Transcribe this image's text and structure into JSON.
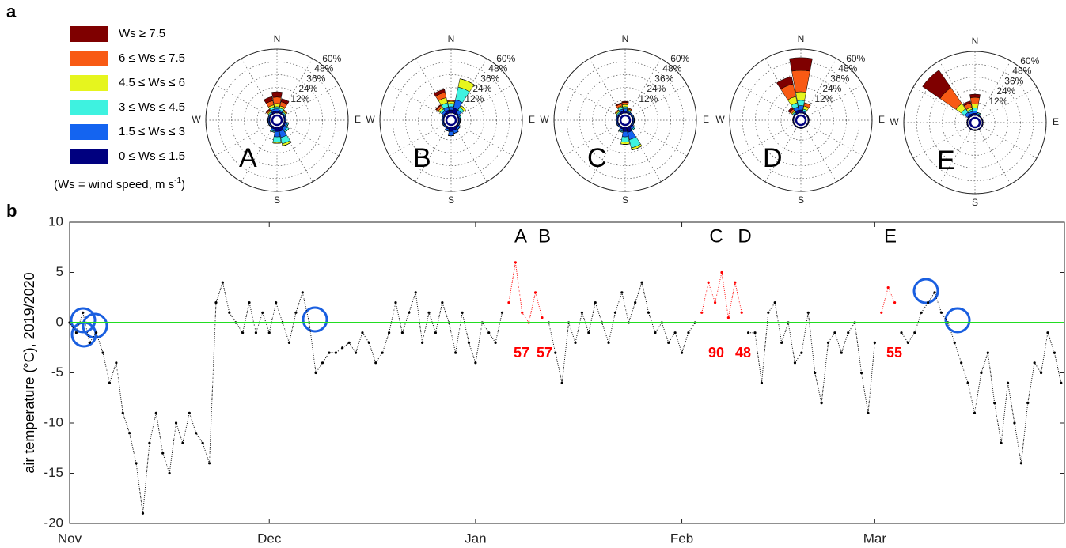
{
  "panel_labels": [
    "a",
    "b"
  ],
  "legend": {
    "entries": [
      {
        "name": "Ws ≥ 7.5",
        "color": "#7f0000"
      },
      {
        "name": "6  ≤ Ws ≤ 7.5",
        "color": "#f85a14"
      },
      {
        "name": "4.5  ≤ Ws ≤ 6",
        "color": "#e6f51e"
      },
      {
        "name": "3  ≤ Ws ≤ 4.5",
        "color": "#3ef2e0"
      },
      {
        "name": "1.5  ≤ Ws ≤ 3",
        "color": "#1464f0"
      },
      {
        "name": "0 ≤ Ws ≤ 1.5",
        "color": "#00007f"
      }
    ],
    "note": "(Ws = wind speed, m s",
    "note_sup": "-1",
    "note_end": ")"
  },
  "chart_data": [
    {
      "type": "wind-rose",
      "label": "A",
      "directions": [
        "N",
        "E",
        "S",
        "W"
      ],
      "rlim": [
        0,
        60
      ],
      "rticks": [
        {
          "value": 12,
          "label": "12%"
        },
        {
          "value": 24,
          "label": "24%"
        },
        {
          "value": 36,
          "label": "36%"
        },
        {
          "value": 48,
          "label": "48%"
        },
        {
          "value": 60,
          "label": "60%"
        }
      ],
      "theta": [
        0,
        22.5,
        45,
        67.5,
        90,
        112.5,
        135,
        157.5,
        180,
        202.5,
        225,
        247.5,
        270,
        292.5,
        315,
        337.5
      ],
      "values": [
        [
          5,
          3,
          0,
          0,
          0,
          0,
          0,
          0,
          0,
          0,
          0,
          0,
          0,
          0,
          1,
          4
        ],
        [
          6,
          4,
          1,
          0,
          0,
          0,
          0,
          0,
          0,
          0,
          0,
          0,
          0,
          0,
          1,
          4
        ],
        [
          3,
          2,
          1,
          0,
          0,
          0,
          0,
          2,
          1,
          0,
          0,
          0,
          0,
          0,
          1,
          2
        ],
        [
          2,
          2,
          1,
          0,
          0,
          1,
          2,
          6,
          5,
          1,
          0,
          0,
          0,
          0,
          1,
          2
        ],
        [
          2,
          1.5,
          1,
          1,
          1,
          2,
          3,
          6,
          5,
          2,
          1,
          1,
          1,
          1,
          1,
          2
        ],
        [
          2,
          1.5,
          1,
          1,
          1,
          1.5,
          2,
          4,
          4,
          2,
          1,
          1,
          1,
          1,
          1,
          2
        ]
      ]
    },
    {
      "type": "wind-rose",
      "label": "B",
      "directions": [
        "N",
        "E",
        "S",
        "W"
      ],
      "rlim": [
        0,
        60
      ],
      "rticks": [
        {
          "value": 12,
          "label": "12%"
        },
        {
          "value": 24,
          "label": "24%"
        },
        {
          "value": 36,
          "label": "36%"
        },
        {
          "value": 48,
          "label": "48%"
        },
        {
          "value": 60,
          "label": "60%"
        }
      ],
      "theta": [
        0,
        22.5,
        45,
        67.5,
        90,
        112.5,
        135,
        157.5,
        180,
        202.5,
        225,
        247.5,
        270,
        292.5,
        315,
        337.5
      ],
      "values": [
        [
          0,
          0,
          0,
          0,
          0,
          0,
          0,
          0,
          0,
          0,
          0,
          0,
          0,
          0,
          1,
          3
        ],
        [
          1,
          0,
          0,
          0,
          0,
          0,
          0,
          0,
          0,
          0,
          0,
          0,
          0,
          0,
          2,
          5
        ],
        [
          2,
          8,
          2,
          0,
          0,
          0,
          0,
          0,
          0,
          0,
          0,
          0,
          0,
          0,
          2,
          5
        ],
        [
          3,
          12,
          3,
          1,
          0,
          0,
          0,
          0,
          0,
          0,
          0,
          0,
          0,
          0,
          2,
          4
        ],
        [
          3,
          8,
          3,
          1,
          1,
          1,
          2,
          3,
          4,
          2,
          1,
          1,
          1,
          1,
          2,
          3
        ],
        [
          3,
          5,
          2,
          1,
          1,
          1,
          2,
          3,
          4,
          2,
          1,
          1,
          1,
          1,
          2,
          3
        ]
      ]
    },
    {
      "type": "wind-rose",
      "label": "C",
      "directions": [
        "N",
        "E",
        "S",
        "W"
      ],
      "rlim": [
        0,
        60
      ],
      "rticks": [
        {
          "value": 12,
          "label": "12%"
        },
        {
          "value": 24,
          "label": "24%"
        },
        {
          "value": 36,
          "label": "36%"
        },
        {
          "value": 48,
          "label": "48%"
        },
        {
          "value": 60,
          "label": "60%"
        }
      ],
      "theta": [
        0,
        22.5,
        45,
        67.5,
        90,
        112.5,
        135,
        157.5,
        180,
        202.5,
        225,
        247.5,
        270,
        292.5,
        315,
        337.5
      ],
      "values": [
        [
          1,
          0,
          0,
          0,
          0,
          0,
          0,
          0,
          0,
          0,
          0,
          0,
          0,
          0,
          0,
          1
        ],
        [
          2,
          1,
          0,
          0,
          0,
          0,
          0,
          0,
          0,
          0,
          0,
          0,
          0,
          0,
          1,
          2
        ],
        [
          2,
          1,
          0,
          0,
          0,
          0,
          0,
          2,
          2,
          0,
          0,
          0,
          0,
          0,
          1,
          1
        ],
        [
          2,
          1,
          0,
          0,
          0,
          0,
          1,
          8,
          5,
          1,
          0,
          0,
          0,
          0,
          1,
          2
        ],
        [
          2,
          1,
          1,
          1,
          1,
          1,
          2,
          7,
          5,
          2,
          1,
          1,
          1,
          1,
          1,
          2
        ],
        [
          2,
          1,
          1,
          1,
          1,
          1,
          2,
          5,
          4,
          2,
          1,
          1,
          1,
          1,
          1,
          2
        ]
      ]
    },
    {
      "type": "wind-rose",
      "label": "D",
      "directions": [
        "N",
        "E",
        "S",
        "W"
      ],
      "rlim": [
        0,
        60
      ],
      "rticks": [
        {
          "value": 12,
          "label": "12%"
        },
        {
          "value": 24,
          "label": "24%"
        },
        {
          "value": 36,
          "label": "36%"
        },
        {
          "value": 48,
          "label": "48%"
        },
        {
          "value": 60,
          "label": "60%"
        }
      ],
      "theta": [
        0,
        22.5,
        45,
        67.5,
        90,
        112.5,
        135,
        157.5,
        180,
        202.5,
        225,
        247.5,
        270,
        292.5,
        315,
        337.5
      ],
      "values": [
        [
          12,
          0,
          0,
          0,
          0,
          0,
          0,
          0,
          0,
          0,
          0,
          0,
          0,
          0,
          2,
          7
        ],
        [
          20,
          3,
          0,
          0,
          0,
          0,
          0,
          0,
          0,
          0,
          0,
          0,
          0,
          0,
          2,
          12
        ],
        [
          8,
          3,
          0,
          0,
          0,
          0,
          0,
          0,
          0,
          0,
          0,
          0,
          0,
          0,
          1,
          6
        ],
        [
          5,
          2,
          0,
          0,
          0,
          0,
          0,
          0,
          0,
          0,
          0,
          0,
          0,
          0,
          1,
          4
        ],
        [
          4,
          1,
          0,
          0,
          0,
          0,
          0,
          0,
          0,
          0,
          0,
          0,
          0,
          0,
          1,
          3
        ],
        [
          3,
          1,
          1,
          1,
          1,
          1,
          1,
          1,
          1,
          1,
          1,
          1,
          1,
          1,
          1,
          3
        ]
      ]
    },
    {
      "type": "wind-rose",
      "label": "E",
      "directions": [
        "N",
        "E",
        "S",
        "W"
      ],
      "rlim": [
        0,
        60
      ],
      "rticks": [
        {
          "value": 12,
          "label": "12%"
        },
        {
          "value": 24,
          "label": "24%"
        },
        {
          "value": 36,
          "label": "36%"
        },
        {
          "value": 48,
          "label": "48%"
        },
        {
          "value": 60,
          "label": "60%"
        }
      ],
      "theta": [
        0,
        22.5,
        45,
        67.5,
        90,
        112.5,
        135,
        157.5,
        180,
        202.5,
        225,
        247.5,
        270,
        292.5,
        315,
        337.5
      ],
      "values": [
        [
          3,
          0,
          0,
          0,
          0,
          0,
          0,
          0,
          0,
          0,
          0,
          0,
          0,
          0,
          20,
          2
        ],
        [
          6,
          0,
          0,
          0,
          0,
          0,
          0,
          0,
          0,
          0,
          0,
          0,
          0,
          0,
          18,
          4
        ],
        [
          4,
          0,
          0,
          0,
          0,
          0,
          0,
          0,
          0,
          0,
          0,
          0,
          0,
          0,
          6,
          2
        ],
        [
          3,
          1,
          0,
          0,
          0,
          0,
          0,
          0,
          0,
          0,
          0,
          0,
          0,
          0,
          4,
          2
        ],
        [
          2,
          1,
          0,
          0,
          0,
          0,
          0,
          0,
          0,
          0,
          0,
          0,
          0,
          0,
          3,
          2
        ],
        [
          2,
          1,
          1,
          1,
          1,
          1,
          1,
          1,
          1,
          1,
          1,
          1,
          1,
          1,
          2,
          2
        ]
      ]
    },
    {
      "type": "scatter",
      "ylabel": "air temperature (°C), 2019/2020",
      "xlim": [
        0,
        149.5
      ],
      "ylim": [
        -20,
        10
      ],
      "xticks": [
        {
          "value": 0,
          "label": "Nov"
        },
        {
          "value": 30,
          "label": "Dec"
        },
        {
          "value": 61,
          "label": "Jan"
        },
        {
          "value": 92,
          "label": "Feb"
        },
        {
          "value": 121,
          "label": "Mar"
        }
      ],
      "yticks": [
        -20,
        -15,
        -10,
        -5,
        0,
        5,
        10
      ],
      "hline": {
        "value": 0,
        "color": "#22dd22"
      },
      "series": [
        {
          "color": "#000000",
          "x": [
            0,
            1,
            2,
            3,
            4,
            5,
            6,
            7,
            8,
            9,
            10,
            11,
            12,
            13,
            14,
            15,
            16,
            17,
            18,
            19,
            20,
            21,
            22,
            23,
            24,
            25,
            26,
            27,
            28,
            29,
            30,
            31,
            32,
            33,
            34,
            35,
            36,
            37,
            38,
            39,
            40,
            41,
            42,
            43,
            44,
            45,
            46,
            47,
            48,
            49,
            50,
            51,
            52,
            53,
            54,
            55,
            56,
            57,
            58,
            59,
            60,
            61,
            62,
            63,
            64,
            65,
            66,
            67,
            68,
            69,
            70,
            71,
            72,
            73,
            74,
            75,
            76,
            77,
            78,
            79,
            80,
            81,
            82,
            83,
            84,
            85,
            86,
            87,
            88,
            89,
            90,
            91,
            92,
            93,
            94,
            95,
            96,
            97,
            98,
            99,
            100,
            101,
            102,
            103,
            104,
            105,
            106,
            107,
            108,
            109,
            110,
            111,
            112,
            113,
            114,
            115,
            116,
            117,
            118,
            119,
            120,
            121,
            122,
            123,
            124,
            125,
            126,
            127,
            128,
            129,
            130,
            131,
            132,
            133,
            134,
            135,
            136,
            137,
            138,
            139,
            140,
            141,
            142,
            143,
            144,
            145,
            146,
            147,
            148,
            149
          ],
          "values": [
            0,
            -1,
            1,
            -2,
            -1,
            -3,
            -6,
            -4,
            -9,
            -11,
            -14,
            -19,
            -12,
            -9,
            -13,
            -15,
            -10,
            -12,
            -9,
            -11,
            -12,
            -14,
            2,
            4,
            1,
            0,
            -1,
            2,
            -1,
            1,
            -1,
            2,
            0,
            -2,
            1,
            3,
            0,
            -5,
            -4,
            -3,
            -3,
            -2.5,
            -2,
            -3,
            -1,
            -2,
            -4,
            -3,
            -1,
            2,
            -1,
            1,
            3,
            -2,
            1,
            -1,
            2,
            0,
            -3,
            1,
            -2,
            -4,
            0,
            -1,
            -2,
            1,
            null,
            null,
            null,
            null,
            null,
            null,
            0,
            -3,
            -6,
            0,
            -2,
            1,
            -1,
            2,
            0,
            -2,
            1,
            3,
            0,
            2,
            4,
            1,
            -1,
            0,
            -2,
            -1,
            -3,
            -1,
            0,
            null,
            null,
            null,
            null,
            null,
            null,
            null,
            -1,
            -1,
            -6,
            1,
            2,
            -2,
            0,
            -4,
            -3,
            1,
            -5,
            -8,
            -2,
            -1,
            -3,
            -1,
            0,
            -5,
            -9,
            -2,
            null,
            null,
            null,
            -1,
            -2,
            -1,
            1,
            2,
            3,
            1,
            0,
            -2,
            -4,
            -6,
            -9,
            -5,
            -3,
            -8,
            -12,
            -6,
            -10,
            -14,
            -8,
            -4,
            -5,
            -1,
            -3,
            -6
          ]
        },
        {
          "color": "#ff0000",
          "x": [
            66,
            67,
            68,
            69,
            70,
            71,
            72,
            95,
            96,
            97,
            98,
            99,
            100,
            101,
            102,
            122,
            123,
            124
          ],
          "values": [
            2,
            6,
            1,
            0,
            3,
            0.5,
            null,
            1,
            4,
            2,
            5,
            0.5,
            4,
            1,
            null,
            1,
            3.5,
            2
          ]
        }
      ],
      "events": [
        {
          "label": "A",
          "count": 57
        },
        {
          "label": "B",
          "count": 57
        },
        {
          "label": "C",
          "count": 90
        },
        {
          "label": "D",
          "count": 48
        },
        {
          "label": "E",
          "count": 55
        }
      ]
    }
  ]
}
